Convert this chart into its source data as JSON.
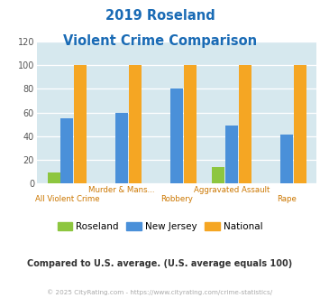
{
  "title_line1": "2019 Roseland",
  "title_line2": "Violent Crime Comparison",
  "categories": [
    "All Violent Crime",
    "Murder & Mans...",
    "Robbery",
    "Aggravated Assault",
    "Rape"
  ],
  "roseland": [
    9,
    0,
    0,
    14,
    0
  ],
  "new_jersey": [
    55,
    60,
    80,
    49,
    41
  ],
  "national": [
    100,
    100,
    100,
    100,
    100
  ],
  "roseland_color": "#8dc63f",
  "nj_color": "#4a90d9",
  "national_color": "#f5a623",
  "ylim": [
    0,
    120
  ],
  "yticks": [
    0,
    20,
    40,
    60,
    80,
    100,
    120
  ],
  "bg_color": "#d6e8ee",
  "title_color": "#1a6bb5",
  "subtitle_note": "Compared to U.S. average. (U.S. average equals 100)",
  "footer": "© 2025 CityRating.com - https://www.cityrating.com/crime-statistics/",
  "note_color": "#333333",
  "footer_color": "#aaaaaa",
  "x_label_top_color": "#cc7700",
  "x_label_bot_color": "#cc7700"
}
